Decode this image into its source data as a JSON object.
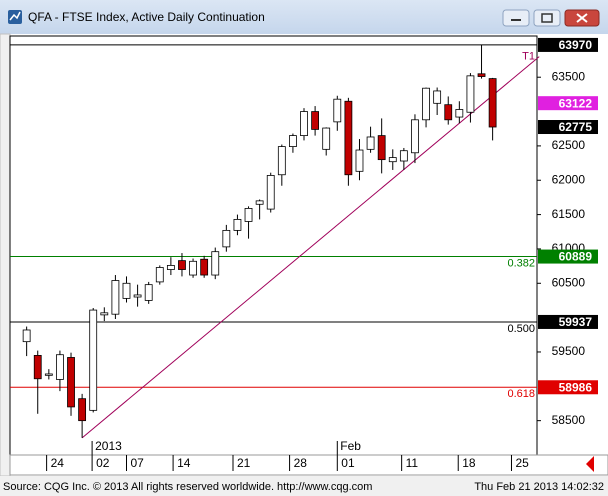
{
  "window": {
    "title": "QFA - FTSE Index, Active Daily Continuation"
  },
  "footer": {
    "left": "Source: CQG Inc. © 2013 All rights reserved worldwide. http://www.cqg.com",
    "right": "Thu Feb 21 2013 14:02:32"
  },
  "chart_data": {
    "type": "candlestick",
    "x": [
      0,
      1,
      2,
      3,
      4,
      5,
      6,
      7,
      8,
      9,
      10,
      11,
      12,
      13,
      14,
      15,
      16,
      17,
      18,
      19,
      20,
      21,
      22,
      23,
      24,
      25,
      26,
      27,
      28,
      29,
      30,
      31,
      32,
      33,
      34,
      35,
      36,
      37,
      38,
      39,
      40,
      41,
      42
    ],
    "open": [
      59650,
      59450,
      59160,
      59100,
      59420,
      58820,
      58650,
      60040,
      60050,
      60280,
      60300,
      60250,
      60520,
      60700,
      60830,
      60620,
      60850,
      60620,
      61030,
      61270,
      61400,
      61650,
      61580,
      62080,
      62490,
      62650,
      63000,
      62450,
      62850,
      63150,
      62130,
      62450,
      62650,
      62270,
      62280,
      62400,
      62880,
      63120,
      63100,
      62920,
      62990,
      63550,
      63480
    ],
    "high": [
      59870,
      59520,
      59250,
      59520,
      59490,
      58890,
      60140,
      60150,
      60620,
      60600,
      60480,
      60520,
      60760,
      60880,
      60940,
      60860,
      60900,
      61020,
      61350,
      61500,
      61620,
      61720,
      62110,
      62520,
      62680,
      63050,
      63080,
      62770,
      63230,
      63200,
      62600,
      62780,
      62900,
      62450,
      62470,
      62960,
      63350,
      63350,
      63220,
      63150,
      63560,
      63970,
      63490
    ],
    "low": [
      59440,
      58600,
      59100,
      58930,
      58570,
      58250,
      58620,
      59950,
      59980,
      60220,
      60160,
      60200,
      60480,
      60620,
      60600,
      60580,
      60580,
      60560,
      60960,
      61200,
      61150,
      61430,
      61530,
      61920,
      62400,
      62580,
      62650,
      62360,
      62720,
      61920,
      62000,
      62400,
      62100,
      62150,
      62150,
      62250,
      62770,
      62950,
      62810,
      62830,
      62840,
      63480,
      62580
    ],
    "close": [
      59820,
      59110,
      59180,
      59460,
      58700,
      58500,
      60110,
      60070,
      60540,
      60500,
      60330,
      60480,
      60730,
      60760,
      60700,
      60820,
      60620,
      60960,
      61270,
      61430,
      61590,
      61700,
      62070,
      62490,
      62650,
      63000,
      62740,
      62760,
      63180,
      62080,
      62440,
      62630,
      62300,
      62330,
      62430,
      62880,
      63340,
      63300,
      62880,
      63030,
      63520,
      63510,
      62775
    ],
    "up_color": "#ffffff",
    "down_color": "#c00000",
    "xlim": [
      -1.5,
      46
    ],
    "xticks": [
      {
        "value": 1.8,
        "label": "24"
      },
      {
        "value": 5.9,
        "label": "02"
      },
      {
        "value": 9,
        "label": "07"
      },
      {
        "value": 13.2,
        "label": "14"
      },
      {
        "value": 18.6,
        "label": "21"
      },
      {
        "value": 23.7,
        "label": "28"
      },
      {
        "value": 28,
        "label": "01"
      },
      {
        "value": 33.8,
        "label": "11"
      },
      {
        "value": 38.9,
        "label": "18"
      },
      {
        "value": 43.7,
        "label": "25"
      }
    ],
    "period_labels": [
      {
        "value": 5.9,
        "label": "2013"
      },
      {
        "value": 28,
        "label": "Feb"
      }
    ],
    "ylim": [
      58000,
      64100
    ],
    "yticks": [
      58500,
      59500,
      60500,
      61000,
      61500,
      62000,
      62500,
      63500
    ],
    "levels": [
      {
        "value": 63970,
        "color": "#000000"
      },
      {
        "value": 60889,
        "color": "#008000",
        "label": "0.382"
      },
      {
        "value": 59937,
        "color": "#000000",
        "label": "0.500"
      },
      {
        "value": 58986,
        "color": "#e00000",
        "label": "0.618"
      }
    ],
    "price_markers": [
      {
        "value": 63122,
        "color": "#e020e0"
      },
      {
        "value": 62775,
        "color": "#000000"
      }
    ],
    "trendline": {
      "label": "T1",
      "color": "#a0005a",
      "x": [
        5,
        46.2
      ],
      "y": [
        58250,
        63800
      ]
    }
  }
}
